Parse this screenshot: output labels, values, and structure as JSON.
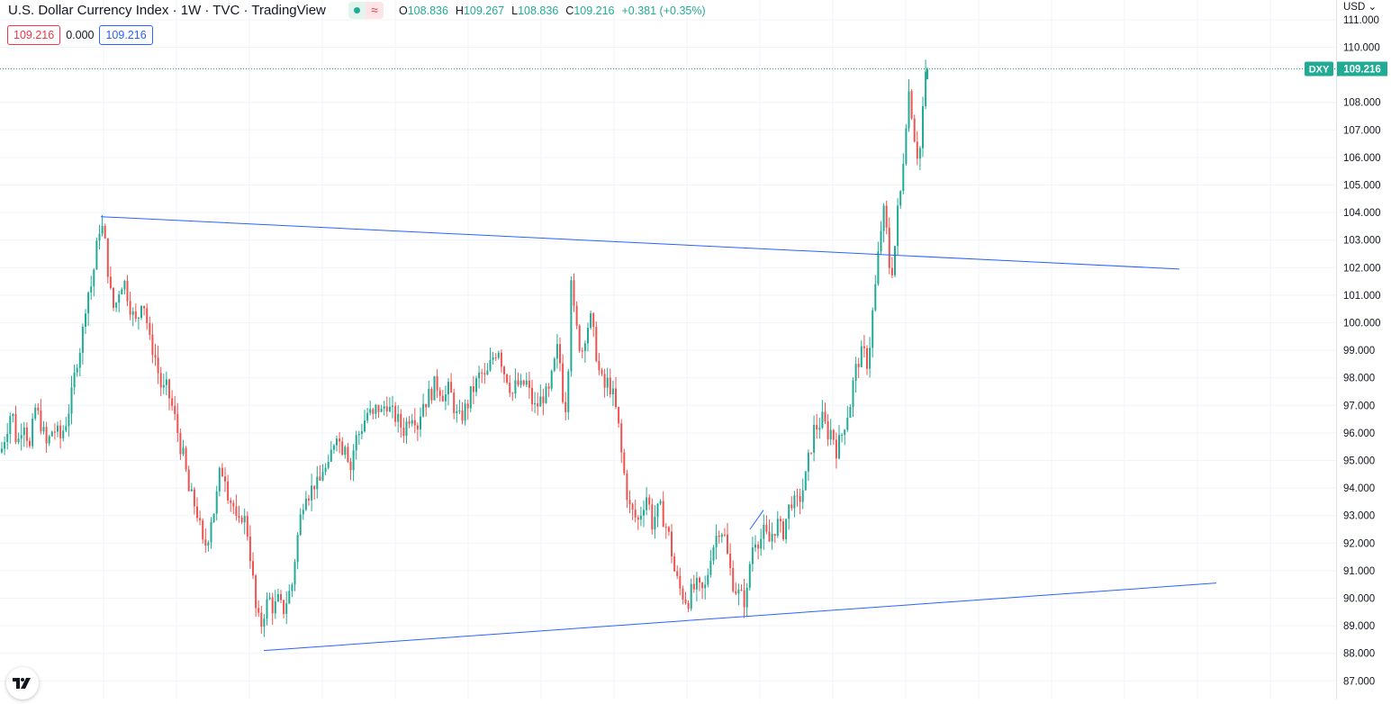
{
  "legend": {
    "title": "U.S. Dollar Currency Index · 1W · TVC · TradingView",
    "open_label": "O",
    "open": "108.836",
    "high_label": "H",
    "high": "109.267",
    "low_label": "L",
    "low": "108.836",
    "close_label": "C",
    "close": "109.216",
    "change": "+0.381 (+0.35%)",
    "eye_icon": "eye-icon",
    "wave_icon": "wave-icon",
    "wave_glyph": "≈"
  },
  "value_boxes": {
    "red": "109.216",
    "zero": "0.000",
    "blue": "109.216"
  },
  "price_axis": {
    "currency": "USD ⌄"
  },
  "colors": {
    "up": "#22ab94",
    "down": "#ef5350",
    "trendline": "#2962ff",
    "grid": "#f0f3fa",
    "last_price": "#22ab94"
  },
  "chart_data": {
    "type": "candlestick",
    "title": "U.S. Dollar Currency Index",
    "symbol": "DXY",
    "interval": "1W",
    "ylim": [
      86.5,
      111.5
    ],
    "y_ticks": [
      "87.000",
      "88.000",
      "89.000",
      "90.000",
      "91.000",
      "92.000",
      "93.000",
      "94.000",
      "95.000",
      "96.000",
      "97.000",
      "98.000",
      "99.000",
      "100.000",
      "101.000",
      "102.000",
      "103.000",
      "104.000",
      "105.000",
      "106.000",
      "107.000",
      "108.000",
      "110.000",
      "111.000"
    ],
    "last_price": 109.216,
    "last_price_label": "109.216",
    "grid": true,
    "close_path": [
      [
        0,
        95.3
      ],
      [
        6,
        96.1
      ],
      [
        12,
        96.9
      ],
      [
        18,
        95.5
      ],
      [
        25,
        96.6
      ],
      [
        32,
        95.4
      ],
      [
        38,
        96.9
      ],
      [
        44,
        96.4
      ],
      [
        51,
        95.5
      ],
      [
        58,
        96.2
      ],
      [
        66,
        95.8
      ],
      [
        73,
        96.5
      ],
      [
        79,
        97.4
      ],
      [
        84,
        98.6
      ],
      [
        90,
        99.4
      ],
      [
        95,
        101.0
      ],
      [
        101,
        101.4
      ],
      [
        106,
        102.6
      ],
      [
        110,
        103.6
      ],
      [
        114,
        103.3
      ],
      [
        118,
        102.2
      ],
      [
        122,
        101.0
      ],
      [
        126,
        100.4
      ],
      [
        131,
        101.2
      ],
      [
        136,
        101.6
      ],
      [
        141,
        101.0
      ],
      [
        146,
        100.3
      ],
      [
        151,
        99.9
      ],
      [
        156,
        100.9
      ],
      [
        160,
        100.6
      ],
      [
        165,
        99.3
      ],
      [
        170,
        99.0
      ],
      [
        174,
        98.3
      ],
      [
        179,
        97.5
      ],
      [
        184,
        97.6
      ],
      [
        189,
        97.1
      ],
      [
        194,
        96.4
      ],
      [
        199,
        95.6
      ],
      [
        204,
        94.9
      ],
      [
        209,
        93.8
      ],
      [
        214,
        93.5
      ],
      [
        219,
        93.0
      ],
      [
        224,
        91.9
      ],
      [
        229,
        92.0
      ],
      [
        233,
        92.9
      ],
      [
        238,
        93.3
      ],
      [
        243,
        94.5
      ],
      [
        248,
        94.7
      ],
      [
        253,
        93.7
      ],
      [
        258,
        93.4
      ],
      [
        263,
        92.4
      ],
      [
        268,
        93.1
      ],
      [
        273,
        92.6
      ],
      [
        278,
        91.3
      ],
      [
        283,
        89.6
      ],
      [
        288,
        88.9
      ],
      [
        293,
        89.6
      ],
      [
        298,
        90.0
      ],
      [
        303,
        89.6
      ],
      [
        308,
        89.9
      ],
      [
        313,
        89.5
      ],
      [
        318,
        90.0
      ],
      [
        323,
        90.4
      ],
      [
        328,
        91.9
      ],
      [
        333,
        93.0
      ],
      [
        338,
        94.0
      ],
      [
        343,
        93.8
      ],
      [
        348,
        94.2
      ],
      [
        353,
        94.0
      ],
      [
        358,
        94.8
      ],
      [
        363,
        94.5
      ],
      [
        368,
        95.5
      ],
      [
        373,
        96.1
      ],
      [
        378,
        95.4
      ],
      [
        383,
        95.8
      ],
      [
        388,
        94.6
      ],
      [
        393,
        95.7
      ],
      [
        398,
        96.0
      ],
      [
        403,
        96.4
      ],
      [
        408,
        96.8
      ],
      [
        413,
        96.5
      ],
      [
        418,
        97.0
      ],
      [
        423,
        96.7
      ],
      [
        428,
        97.2
      ],
      [
        433,
        96.7
      ],
      [
        438,
        96.6
      ],
      [
        443,
        96.3
      ],
      [
        448,
        96.1
      ],
      [
        453,
        96.6
      ],
      [
        458,
        96.8
      ],
      [
        463,
        96.3
      ],
      [
        468,
        97.1
      ],
      [
        473,
        97.2
      ],
      [
        478,
        97.5
      ],
      [
        483,
        97.8
      ],
      [
        488,
        97.6
      ],
      [
        493,
        97.3
      ],
      [
        498,
        97.6
      ],
      [
        503,
        97.0
      ],
      [
        508,
        96.4
      ],
      [
        513,
        96.7
      ],
      [
        518,
        97.0
      ],
      [
        523,
        97.5
      ],
      [
        528,
        97.8
      ],
      [
        533,
        98.2
      ],
      [
        538,
        97.9
      ],
      [
        543,
        98.4
      ],
      [
        548,
        98.9
      ],
      [
        553,
        99.1
      ],
      [
        558,
        98.3
      ],
      [
        563,
        98.0
      ],
      [
        568,
        97.4
      ],
      [
        573,
        97.8
      ],
      [
        578,
        97.6
      ],
      [
        583,
        97.9
      ],
      [
        588,
        97.3
      ],
      [
        593,
        96.9
      ],
      [
        598,
        97.1
      ],
      [
        603,
        97.4
      ],
      [
        608,
        97.3
      ],
      [
        613,
        98.2
      ],
      [
        618,
        99.0
      ],
      [
        622,
        98.4
      ],
      [
        626,
        96.5
      ],
      [
        630,
        98.2
      ],
      [
        633,
        102.0
      ],
      [
        637,
        100.1
      ],
      [
        641,
        99.5
      ],
      [
        645,
        98.9
      ],
      [
        650,
        99.8
      ],
      [
        655,
        100.1
      ],
      [
        660,
        99.2
      ],
      [
        665,
        98.1
      ],
      [
        670,
        97.6
      ],
      [
        675,
        97.9
      ],
      [
        680,
        97.3
      ],
      [
        685,
        96.5
      ],
      [
        690,
        95.0
      ],
      [
        694,
        94.1
      ],
      [
        698,
        93.3
      ],
      [
        703,
        93.0
      ],
      [
        708,
        92.8
      ],
      [
        713,
        93.4
      ],
      [
        718,
        93.8
      ],
      [
        723,
        92.7
      ],
      [
        728,
        93.1
      ],
      [
        733,
        93.2
      ],
      [
        738,
        92.7
      ],
      [
        743,
        92.1
      ],
      [
        748,
        91.0
      ],
      [
        753,
        90.4
      ],
      [
        758,
        90.1
      ],
      [
        763,
        89.9
      ],
      [
        768,
        90.3
      ],
      [
        773,
        90.4
      ],
      [
        778,
        90.2
      ],
      [
        783,
        90.4
      ],
      [
        788,
        91.6
      ],
      [
        793,
        92.1
      ],
      [
        798,
        92.6
      ],
      [
        803,
        92.4
      ],
      [
        808,
        91.3
      ],
      [
        813,
        90.6
      ],
      [
        818,
        90.2
      ],
      [
        823,
        90.0
      ],
      [
        828,
        89.9
      ],
      [
        833,
        91.7
      ],
      [
        838,
        92.2
      ],
      [
        843,
        92.1
      ],
      [
        848,
        92.4
      ],
      [
        853,
        92.0
      ],
      [
        858,
        92.5
      ],
      [
        863,
        92.7
      ],
      [
        868,
        92.3
      ],
      [
        873,
        93.0
      ],
      [
        878,
        93.6
      ],
      [
        883,
        93.3
      ],
      [
        888,
        93.7
      ],
      [
        893,
        94.2
      ],
      [
        898,
        95.2
      ],
      [
        903,
        96.1
      ],
      [
        908,
        96.3
      ],
      [
        913,
        96.5
      ],
      [
        918,
        96.0
      ],
      [
        923,
        96.1
      ],
      [
        928,
        95.4
      ],
      [
        933,
        95.8
      ],
      [
        938,
        96.5
      ],
      [
        943,
        97.0
      ],
      [
        948,
        98.1
      ],
      [
        953,
        98.7
      ],
      [
        958,
        98.9
      ],
      [
        963,
        98.5
      ],
      [
        968,
        100.3
      ],
      [
        972,
        101.5
      ],
      [
        976,
        103.0
      ],
      [
        980,
        104.1
      ],
      [
        984,
        103.2
      ],
      [
        988,
        101.6
      ],
      [
        992,
        102.4
      ],
      [
        996,
        104.0
      ],
      [
        1000,
        104.9
      ],
      [
        1004,
        106.8
      ],
      [
        1008,
        108.5
      ],
      [
        1012,
        107.6
      ],
      [
        1016,
        106.4
      ],
      [
        1020,
        105.9
      ],
      [
        1024,
        107.8
      ],
      [
        1028,
        109.2
      ]
    ],
    "trendlines": [
      {
        "name": "resistance",
        "x1": 112,
        "y1": 103.85,
        "x2": 1310,
        "y2": 101.95
      },
      {
        "name": "support",
        "x1": 293,
        "y1": 88.1,
        "x2": 1351,
        "y2": 90.55
      },
      {
        "name": "flag",
        "x1": 833,
        "y1": 92.5,
        "x2": 848,
        "y2": 93.2
      }
    ]
  }
}
